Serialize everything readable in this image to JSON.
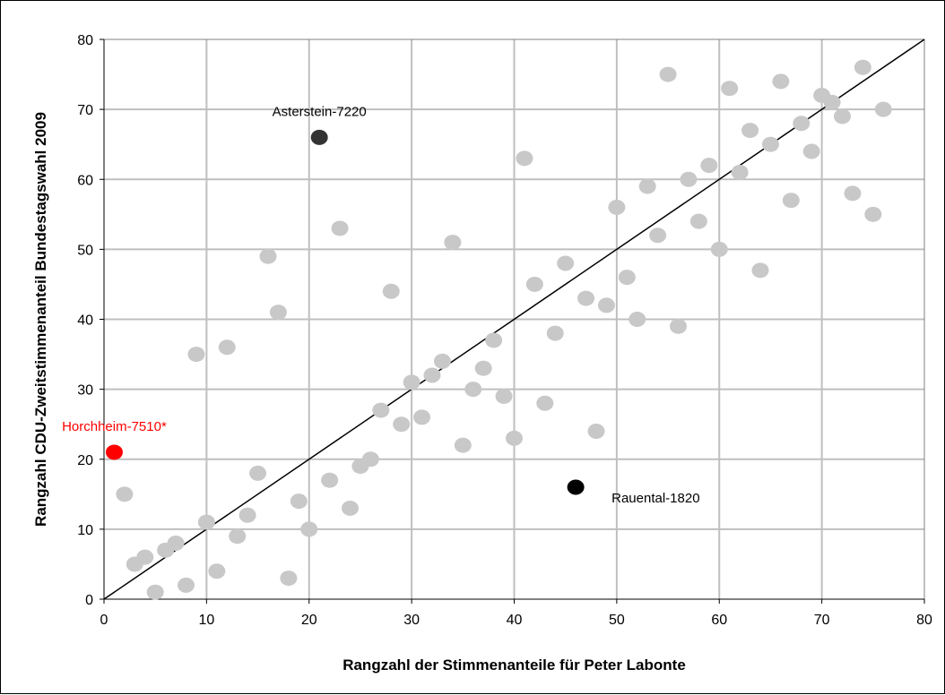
{
  "chart_data": {
    "type": "scatter",
    "title": "",
    "xlabel": "Rangzahl der Stimmenanteile für Peter Labonte",
    "ylabel": "Rangzahl CDU-Zweitstimmenanteil Bundestagswahl 2009",
    "xlim": [
      0,
      80
    ],
    "ylim": [
      0,
      80
    ],
    "xticks": [
      0,
      10,
      20,
      30,
      40,
      50,
      60,
      70,
      80
    ],
    "yticks": [
      0,
      10,
      20,
      30,
      40,
      50,
      60,
      70,
      80
    ],
    "grid": true,
    "reference_line": {
      "from": [
        0,
        0
      ],
      "to": [
        80,
        80
      ],
      "color": "#000000"
    },
    "points": [
      [
        2,
        15
      ],
      [
        3,
        5
      ],
      [
        4,
        6
      ],
      [
        5,
        1
      ],
      [
        6,
        7
      ],
      [
        7,
        8
      ],
      [
        8,
        2
      ],
      [
        9,
        35
      ],
      [
        10,
        11
      ],
      [
        11,
        4
      ],
      [
        12,
        36
      ],
      [
        13,
        9
      ],
      [
        14,
        12
      ],
      [
        15,
        18
      ],
      [
        16,
        49
      ],
      [
        17,
        41
      ],
      [
        18,
        3
      ],
      [
        19,
        14
      ],
      [
        20,
        10
      ],
      [
        22,
        17
      ],
      [
        23,
        53
      ],
      [
        24,
        13
      ],
      [
        25,
        19
      ],
      [
        26,
        20
      ],
      [
        27,
        27
      ],
      [
        28,
        44
      ],
      [
        29,
        25
      ],
      [
        30,
        31
      ],
      [
        31,
        26
      ],
      [
        32,
        32
      ],
      [
        33,
        34
      ],
      [
        34,
        51
      ],
      [
        35,
        22
      ],
      [
        36,
        30
      ],
      [
        37,
        33
      ],
      [
        38,
        37
      ],
      [
        39,
        29
      ],
      [
        40,
        23
      ],
      [
        41,
        63
      ],
      [
        42,
        45
      ],
      [
        43,
        28
      ],
      [
        44,
        38
      ],
      [
        45,
        48
      ],
      [
        47,
        43
      ],
      [
        48,
        24
      ],
      [
        49,
        42
      ],
      [
        50,
        56
      ],
      [
        51,
        46
      ],
      [
        52,
        40
      ],
      [
        53,
        59
      ],
      [
        54,
        52
      ],
      [
        55,
        75
      ],
      [
        56,
        39
      ],
      [
        57,
        60
      ],
      [
        58,
        54
      ],
      [
        59,
        62
      ],
      [
        60,
        50
      ],
      [
        61,
        73
      ],
      [
        62,
        61
      ],
      [
        63,
        67
      ],
      [
        64,
        47
      ],
      [
        65,
        65
      ],
      [
        66,
        74
      ],
      [
        67,
        57
      ],
      [
        68,
        68
      ],
      [
        69,
        64
      ],
      [
        70,
        72
      ],
      [
        71,
        71
      ],
      [
        72,
        69
      ],
      [
        73,
        58
      ],
      [
        74,
        76
      ],
      [
        75,
        55
      ],
      [
        76,
        70
      ]
    ],
    "point_color": "#c8c8c8",
    "highlights": [
      {
        "label": "Asterstein-7220",
        "x": 21,
        "y": 66,
        "color": "#333333",
        "label_color": "#000000",
        "label_pos": "above"
      },
      {
        "label": "Horchheim-7510*",
        "x": 1,
        "y": 21,
        "color": "#ff0000",
        "label_color": "#ff0000",
        "label_pos": "above"
      },
      {
        "label": "Rauental-1820",
        "x": 46,
        "y": 16,
        "color": "#000000",
        "label_color": "#000000",
        "label_pos": "below-right"
      }
    ]
  }
}
